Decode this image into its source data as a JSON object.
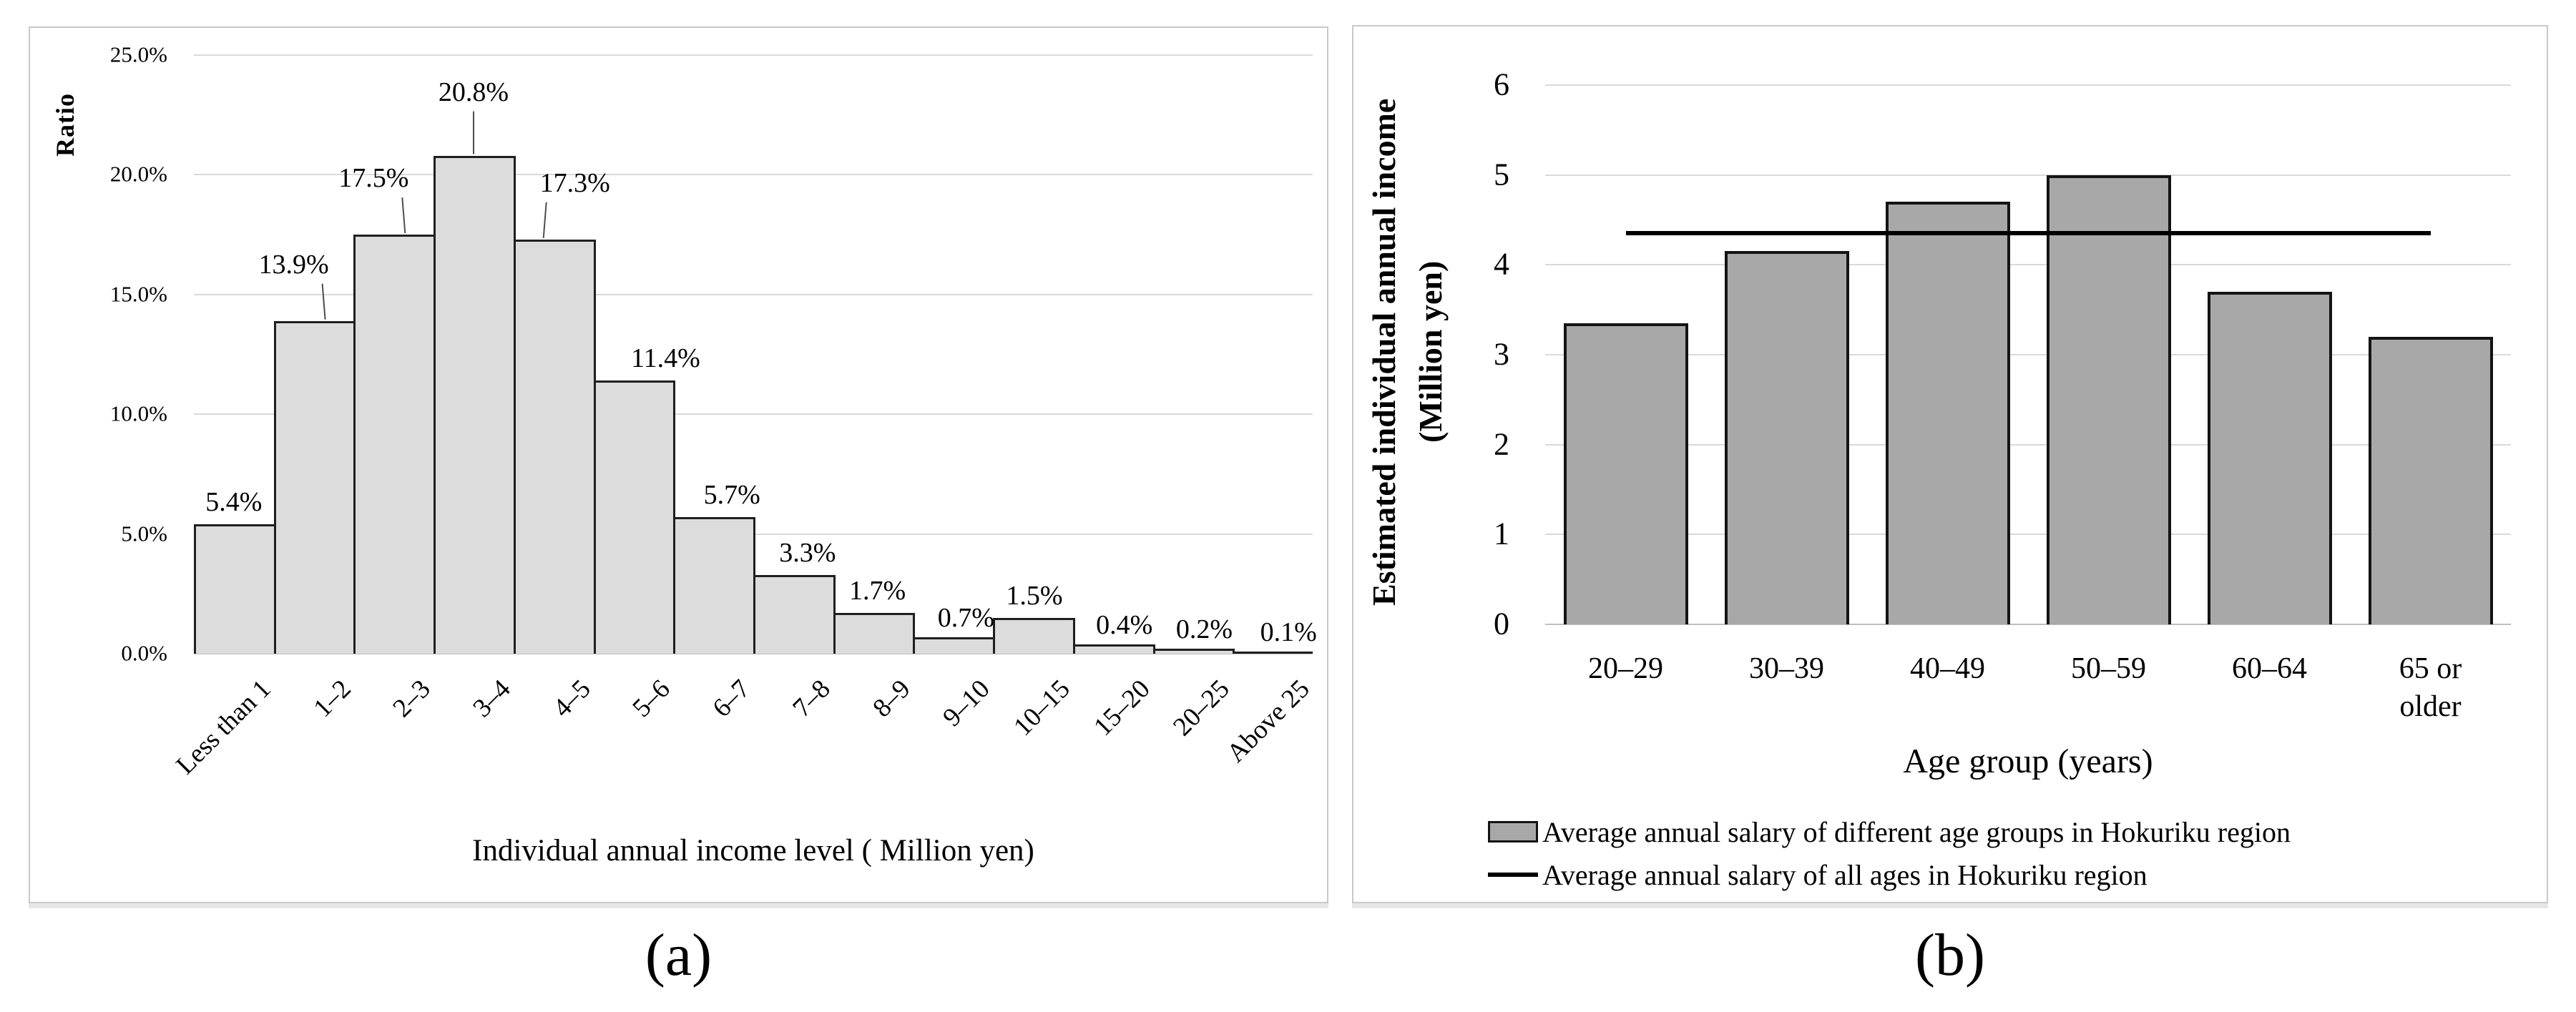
{
  "captions": {
    "a": "(a)",
    "b": "(b)"
  },
  "chart_data": [
    {
      "id": "a",
      "type": "bar",
      "ylabel": "Ratio",
      "xlabel": "Individual annual income level ( Million yen)",
      "categories": [
        "Less than 1",
        "1–2",
        "2–3",
        "3–4",
        "4–5",
        "5–6",
        "6–7",
        "7–8",
        "8–9",
        "9–10",
        "10–15",
        "15–20",
        "20–25",
        "Above 25"
      ],
      "values": [
        5.4,
        13.9,
        17.5,
        20.8,
        17.3,
        11.4,
        5.7,
        3.3,
        1.7,
        0.7,
        1.5,
        0.4,
        0.2,
        0.1
      ],
      "data_labels": [
        "5.4%",
        "13.9%",
        "17.5%",
        "20.8%",
        "17.3%",
        "11.4%",
        "5.7%",
        "3.3%",
        "1.7%",
        "0.7%",
        "1.5%",
        "0.4%",
        "0.2%",
        "0.1%"
      ],
      "y_ticks": [
        "0.0%",
        "5.0%",
        "10.0%",
        "15.0%",
        "20.0%",
        "25.0%"
      ],
      "ylim": [
        0,
        25
      ],
      "grid": true,
      "legend_position": "none",
      "bar_fill": "#dcdcdc",
      "bar_border": "#1f1f1f"
    },
    {
      "id": "b",
      "type": "bar",
      "ylabel_line1": "Estimated individual annual income",
      "ylabel_line2": "(Million yen)",
      "xlabel": "Age group (years)",
      "categories": [
        "20–29",
        "30–39",
        "40–49",
        "50–59",
        "60–64",
        "65 or older"
      ],
      "values": [
        3.35,
        4.15,
        4.7,
        5.0,
        3.7,
        3.2
      ],
      "y_ticks": [
        "0",
        "1",
        "2",
        "3",
        "4",
        "5",
        "6"
      ],
      "ylim": [
        0,
        6
      ],
      "grid": true,
      "average_line": {
        "value": 4.35
      },
      "legend_position": "bottom",
      "legend": [
        {
          "swatch": "bar",
          "label": "Average annual salary of different age groups in Hokuriku region"
        },
        {
          "swatch": "line",
          "label": "Average annual salary of all ages in Hokuriku region"
        }
      ],
      "bar_fill": "#a8a8a8",
      "bar_border": "#141414",
      "line_color": "#000000"
    }
  ]
}
